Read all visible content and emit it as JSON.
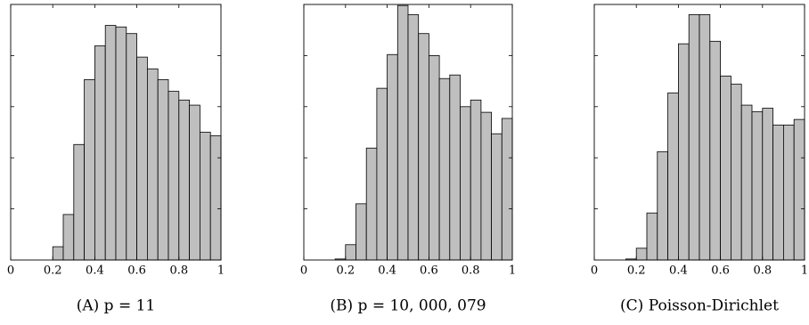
{
  "chart_data": [
    {
      "type": "histogram",
      "caption": "(A) p = 11",
      "bins": [
        0,
        0.05,
        0.1,
        0.15,
        0.2,
        0.25,
        0.3,
        0.35,
        0.4,
        0.45,
        0.5,
        0.55,
        0.6,
        0.65,
        0.7,
        0.75,
        0.8,
        0.85,
        0.9,
        0.95,
        1
      ],
      "counts": [
        0,
        0,
        0,
        0,
        0.26,
        0.89,
        2.26,
        3.53,
        4.19,
        4.59,
        4.56,
        4.43,
        3.97,
        3.74,
        3.53,
        3.3,
        3.13,
        3.03,
        2.5,
        2.43
      ],
      "color": "#bfbfbf",
      "xlim": [
        0,
        1
      ],
      "xticks": [
        0,
        0.2,
        0.4,
        0.6,
        0.8,
        1
      ],
      "ylim": [
        0,
        5
      ],
      "yticks": [
        1,
        2,
        3,
        4
      ]
    },
    {
      "type": "histogram",
      "caption": "(B) p = 10, 000, 079",
      "bins": [
        0,
        0.05,
        0.1,
        0.15,
        0.2,
        0.25,
        0.3,
        0.35,
        0.4,
        0.45,
        0.5,
        0.55,
        0.6,
        0.65,
        0.7,
        0.75,
        0.8,
        0.85,
        0.9,
        0.95,
        1
      ],
      "counts": [
        0,
        0,
        0,
        0.02,
        0.3,
        1.1,
        2.19,
        3.36,
        4.02,
        4.98,
        4.8,
        4.43,
        4.0,
        3.55,
        3.62,
        3.0,
        3.13,
        2.89,
        2.47,
        2.77
      ],
      "color": "#bfbfbf",
      "xlim": [
        0,
        1
      ],
      "xticks": [
        0,
        0.2,
        0.4,
        0.6,
        0.8,
        1
      ],
      "ylim": [
        0,
        5
      ],
      "yticks": [
        1,
        2,
        3,
        4
      ]
    },
    {
      "type": "histogram",
      "caption": "(C) Poisson-Dirichlet",
      "bins": [
        0,
        0.05,
        0.1,
        0.15,
        0.2,
        0.25,
        0.3,
        0.35,
        0.4,
        0.45,
        0.5,
        0.55,
        0.6,
        0.65,
        0.7,
        0.75,
        0.8,
        0.85,
        0.9,
        0.95,
        1
      ],
      "counts": [
        0,
        0,
        0,
        0.02,
        0.23,
        0.92,
        2.12,
        3.27,
        4.23,
        4.8,
        4.8,
        4.28,
        3.6,
        3.44,
        3.03,
        2.9,
        2.97,
        2.64,
        2.64,
        2.75
      ],
      "color": "#bfbfbf",
      "xlim": [
        0,
        1
      ],
      "xticks": [
        0,
        0.2,
        0.4,
        0.6,
        0.8,
        1
      ],
      "ylim": [
        0,
        5
      ],
      "yticks": [
        1,
        2,
        3,
        4
      ]
    }
  ]
}
